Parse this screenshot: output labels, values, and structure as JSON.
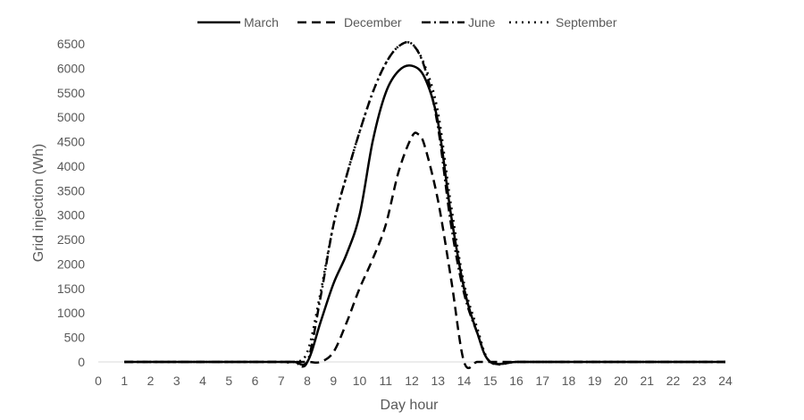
{
  "chart_data": {
    "type": "line",
    "xlabel": "Day hour",
    "ylabel": "Grid injection (Wh)",
    "xlim": [
      0,
      24
    ],
    "ylim": [
      0,
      6500
    ],
    "x_ticks": [
      "0",
      "1",
      "2",
      "3",
      "4",
      "5",
      "6",
      "7",
      "8",
      "9",
      "10",
      "11",
      "12",
      "13",
      "14",
      "15",
      "16",
      "17",
      "18",
      "19",
      "20",
      "21",
      "22",
      "23",
      "24"
    ],
    "y_ticks": [
      "0",
      "500",
      "1000",
      "1500",
      "2000",
      "2500",
      "3000",
      "3500",
      "4000",
      "4500",
      "5000",
      "5500",
      "6000",
      "6500"
    ],
    "grid": false,
    "legend_position": "top",
    "series": [
      {
        "name": "March",
        "color": "#000000",
        "dash": "solid",
        "x": [
          1,
          2,
          3,
          4,
          5,
          6,
          7,
          7.5,
          8,
          8.5,
          9,
          9.5,
          10,
          10.5,
          11,
          11.5,
          12,
          12.5,
          13,
          13.5,
          14,
          14.5,
          15,
          16,
          17,
          18,
          19,
          20,
          21,
          22,
          23,
          24
        ],
        "y": [
          0,
          0,
          0,
          0,
          0,
          0,
          0,
          0,
          0,
          800,
          1600,
          2200,
          3000,
          4500,
          5500,
          5950,
          6050,
          5800,
          4900,
          3000,
          1500,
          600,
          0,
          0,
          0,
          0,
          0,
          0,
          0,
          0,
          0,
          0
        ]
      },
      {
        "name": "December",
        "color": "#000000",
        "dash": "dash",
        "x": [
          1,
          2,
          3,
          4,
          5,
          6,
          7,
          8,
          8.5,
          9,
          9.5,
          10,
          10.5,
          11,
          11.5,
          12,
          12.25,
          12.5,
          13,
          13.5,
          14,
          14.5,
          15,
          16,
          17,
          18,
          19,
          20,
          21,
          22,
          23,
          24
        ],
        "y": [
          0,
          0,
          0,
          0,
          0,
          0,
          0,
          0,
          0,
          200,
          800,
          1500,
          2100,
          2800,
          3900,
          4600,
          4650,
          4400,
          3300,
          1700,
          0,
          0,
          0,
          0,
          0,
          0,
          0,
          0,
          0,
          0,
          0,
          0
        ]
      },
      {
        "name": "June",
        "color": "#000000",
        "dash": "dashdot",
        "x": [
          1,
          2,
          3,
          4,
          5,
          6,
          7,
          7.5,
          8,
          8.5,
          9,
          9.5,
          10,
          10.5,
          11,
          11.5,
          12,
          12.5,
          13,
          13.5,
          14,
          14.5,
          15,
          16,
          17,
          18,
          19,
          20,
          21,
          22,
          23,
          24
        ],
        "y": [
          0,
          0,
          0,
          0,
          0,
          0,
          0,
          0,
          0,
          1300,
          2800,
          3800,
          4700,
          5500,
          6100,
          6450,
          6500,
          6000,
          4800,
          2800,
          1400,
          600,
          0,
          0,
          0,
          0,
          0,
          0,
          0,
          0,
          0,
          0
        ]
      },
      {
        "name": "September",
        "color": "#000000",
        "dash": "dot",
        "x": [
          1,
          2,
          3,
          4,
          5,
          6,
          7,
          7.5,
          8,
          8.5,
          9,
          9.5,
          10,
          10.5,
          11,
          11.5,
          12,
          12.5,
          13,
          13.5,
          14,
          14.5,
          15,
          16,
          17,
          18,
          19,
          20,
          21,
          22,
          23,
          24
        ],
        "y": [
          0,
          0,
          0,
          0,
          0,
          0,
          0,
          0,
          200,
          1400,
          2800,
          3800,
          4700,
          5500,
          6100,
          6450,
          6500,
          6050,
          5100,
          3200,
          1600,
          700,
          0,
          0,
          0,
          0,
          0,
          0,
          0,
          0,
          0,
          0
        ]
      }
    ]
  }
}
